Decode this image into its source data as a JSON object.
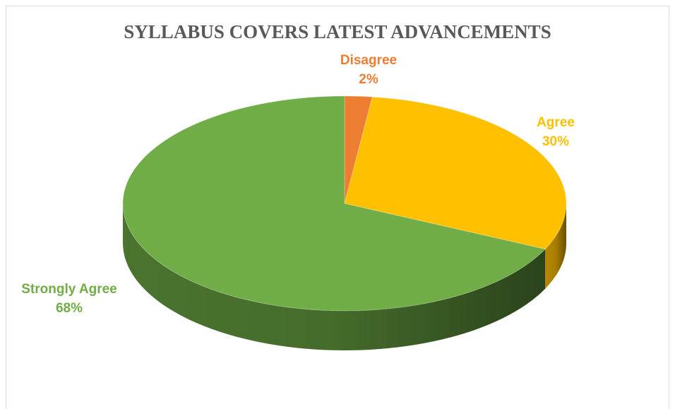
{
  "chart_data": {
    "type": "pie",
    "title": "SYLLABUS COVERS LATEST ADVANCEMENTS",
    "slices": [
      {
        "label": "Disagree",
        "value": 2,
        "value_label": "2%",
        "color": "#ED7D31",
        "side_color": "#B95F22"
      },
      {
        "label": "Agree",
        "value": 30,
        "value_label": "30%",
        "color": "#FFC000",
        "side_color": "#BF8F00"
      },
      {
        "label": "Strongly Agree",
        "value": 68,
        "value_label": "68%",
        "color": "#70AD47",
        "side_color": "#4E7A31"
      }
    ],
    "style": "3d",
    "legend": "none"
  }
}
